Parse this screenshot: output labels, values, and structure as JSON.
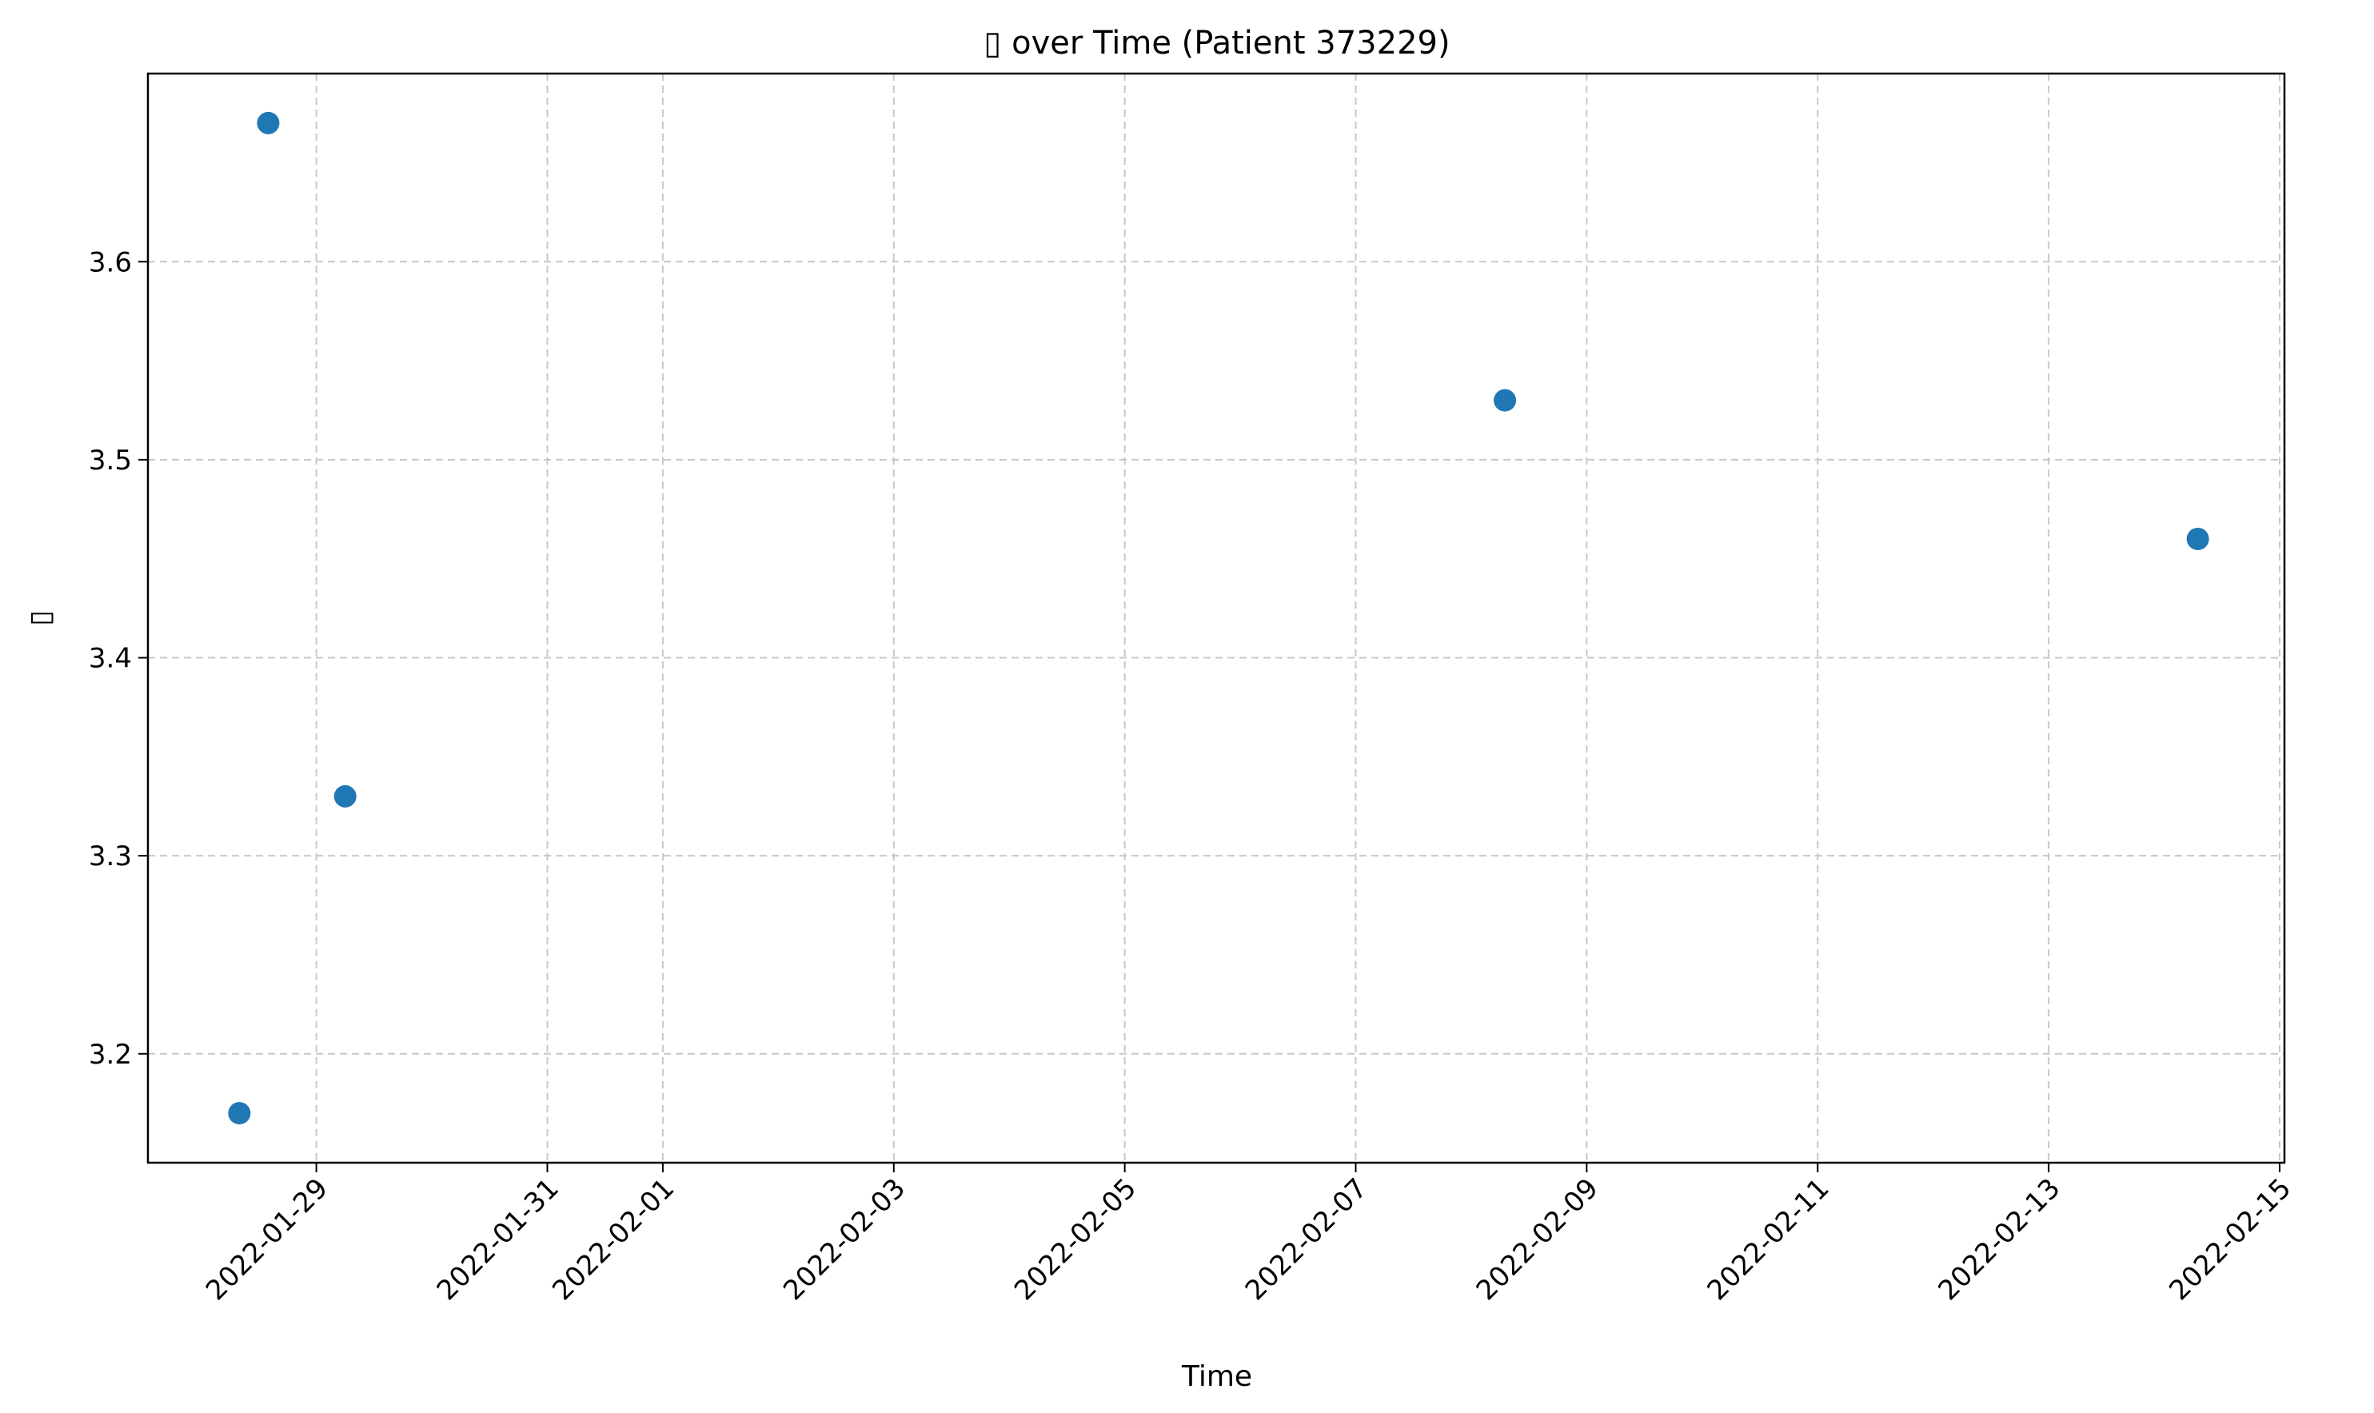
{
  "chart_data": {
    "type": "scatter",
    "title": "▯ over Time (Patient 373229)",
    "xlabel": "Time",
    "ylabel": "▯",
    "x_type": "date",
    "xlim": [
      "2022-01-27T13:00",
      "2022-02-15T01:00"
    ],
    "ylim": [
      3.145,
      3.695
    ],
    "x_ticks": [
      "2022-01-29",
      "2022-01-31",
      "2022-02-01",
      "2022-02-03",
      "2022-02-05",
      "2022-02-07",
      "2022-02-09",
      "2022-02-11",
      "2022-02-13",
      "2022-02-15"
    ],
    "y_ticks": [
      3.2,
      3.3,
      3.4,
      3.5,
      3.6
    ],
    "grid": true,
    "marker_color": "#1f77b4",
    "series": [
      {
        "x": [
          "2022-01-28T08:00",
          "2022-01-28T14:00",
          "2022-01-29T06:00",
          "2022-02-08T07:00",
          "2022-02-14T07:00"
        ],
        "y": [
          3.17,
          3.67,
          3.33,
          3.53,
          3.46
        ]
      }
    ]
  }
}
